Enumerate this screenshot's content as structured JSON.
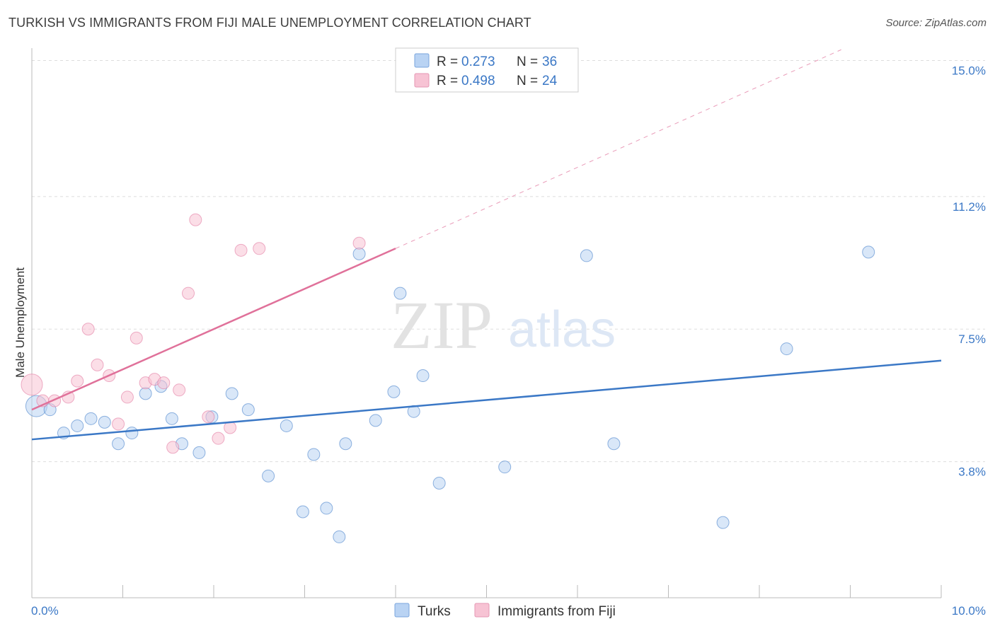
{
  "header": {
    "title": "TURKISH VS IMMIGRANTS FROM FIJI MALE UNEMPLOYMENT CORRELATION CHART",
    "source": "Source: ZipAtlas.com"
  },
  "watermark": {
    "zip": "ZIP",
    "atlas": "atlas"
  },
  "chart_data": {
    "type": "scatter",
    "title": "TURKISH VS IMMIGRANTS FROM FIJI MALE UNEMPLOYMENT CORRELATION CHART",
    "xlabel": "",
    "ylabel": "Male Unemployment",
    "xlim": [
      0,
      10
    ],
    "ylim": [
      0,
      15.7
    ],
    "x_tick_labels": [
      "0.0%",
      "10.0%"
    ],
    "y_ticks": [
      3.8,
      7.5,
      11.2,
      15.0
    ],
    "y_tick_labels": [
      "3.8%",
      "7.5%",
      "11.2%",
      "15.0%"
    ],
    "grid": true,
    "legend": {
      "position": "top-center",
      "entries": [
        {
          "r_label": "R =",
          "r_value": "0.273",
          "n_label": "N =",
          "n_value": "36"
        },
        {
          "r_label": "R =",
          "r_value": "0.498",
          "n_label": "N =",
          "n_value": "24"
        }
      ]
    },
    "series": [
      {
        "name": "Turks",
        "color": "#3b78c6",
        "fill": "#b9d3f3",
        "points": [
          [
            0.05,
            5.35
          ],
          [
            0.2,
            5.25
          ],
          [
            0.35,
            4.6
          ],
          [
            0.5,
            4.8
          ],
          [
            0.65,
            5.0
          ],
          [
            0.8,
            4.9
          ],
          [
            0.95,
            4.3
          ],
          [
            1.1,
            4.6
          ],
          [
            1.25,
            5.7
          ],
          [
            1.42,
            5.9
          ],
          [
            1.54,
            5.0
          ],
          [
            1.65,
            4.3
          ],
          [
            1.84,
            4.05
          ],
          [
            1.98,
            5.05
          ],
          [
            2.2,
            5.7
          ],
          [
            2.38,
            5.25
          ],
          [
            2.6,
            3.4
          ],
          [
            2.8,
            4.8
          ],
          [
            2.98,
            2.4
          ],
          [
            3.1,
            4.0
          ],
          [
            3.24,
            2.5
          ],
          [
            3.38,
            1.7
          ],
          [
            3.45,
            4.3
          ],
          [
            3.6,
            9.6
          ],
          [
            3.78,
            4.95
          ],
          [
            3.98,
            5.75
          ],
          [
            4.05,
            8.5
          ],
          [
            4.2,
            5.2
          ],
          [
            4.3,
            6.2
          ],
          [
            4.48,
            3.2
          ],
          [
            5.2,
            3.65
          ],
          [
            6.1,
            9.55
          ],
          [
            6.4,
            4.3
          ],
          [
            7.6,
            2.1
          ],
          [
            8.3,
            6.95
          ],
          [
            9.2,
            9.65
          ]
        ],
        "trend": {
          "x": [
            0,
            10
          ],
          "y": [
            4.42,
            6.62
          ],
          "dashed_extension": false
        }
      },
      {
        "name": "Immigrants from Fiji",
        "color": "#e0719a",
        "fill": "#f7c3d4",
        "points": [
          [
            0.0,
            5.95
          ],
          [
            0.12,
            5.5
          ],
          [
            0.25,
            5.5
          ],
          [
            0.4,
            5.6
          ],
          [
            0.5,
            6.05
          ],
          [
            0.62,
            7.5
          ],
          [
            0.72,
            6.5
          ],
          [
            0.85,
            6.2
          ],
          [
            0.95,
            4.85
          ],
          [
            1.05,
            5.6
          ],
          [
            1.15,
            7.25
          ],
          [
            1.25,
            6.0
          ],
          [
            1.35,
            6.1
          ],
          [
            1.45,
            6.0
          ],
          [
            1.55,
            4.2
          ],
          [
            1.62,
            5.8
          ],
          [
            1.72,
            8.5
          ],
          [
            1.8,
            10.55
          ],
          [
            1.94,
            5.05
          ],
          [
            2.05,
            4.45
          ],
          [
            2.18,
            4.75
          ],
          [
            2.3,
            9.7
          ],
          [
            2.5,
            9.75
          ],
          [
            3.6,
            9.9
          ]
        ],
        "trend": {
          "x": [
            0,
            4.0
          ],
          "y": [
            5.25,
            9.75
          ],
          "dashed_extension": true,
          "extension_to": [
            8.9,
            15.3
          ]
        }
      }
    ]
  }
}
